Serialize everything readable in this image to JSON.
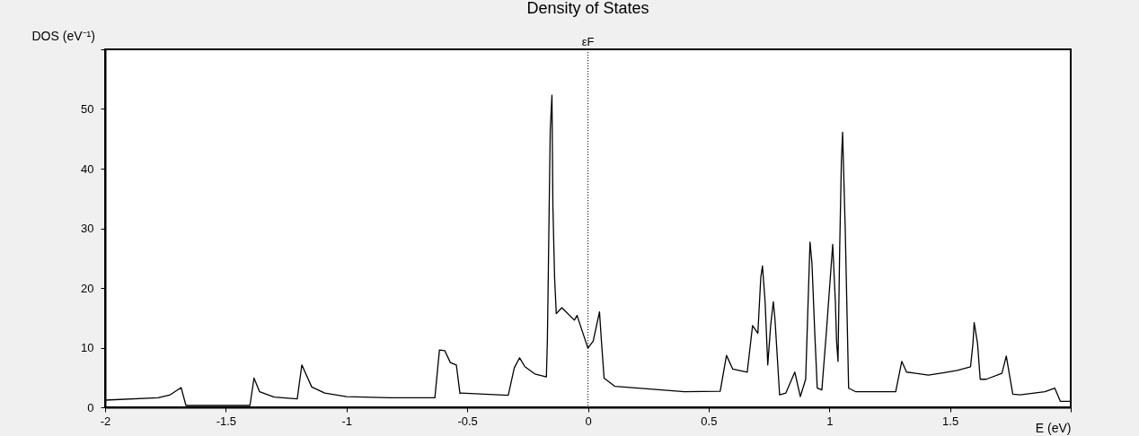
{
  "chart_data": {
    "type": "line",
    "title": "Density of States",
    "xlabel": "E (eV)",
    "ylabel": "DOS (eV⁻¹)",
    "series": [
      {
        "color": "#000000",
        "x": [
          -2,
          -1.78,
          -1.73,
          -1.685,
          -1.665,
          -1.4,
          -1.383,
          -1.36,
          -1.3,
          -1.204,
          -1.185,
          -1.144,
          -1.09,
          -1.0,
          -0.82,
          -0.634,
          -0.615,
          -0.593,
          -0.57,
          -0.545,
          -0.53,
          -0.525,
          -0.33,
          -0.305,
          -0.283,
          -0.261,
          -0.22,
          -0.172,
          -0.168,
          -0.164,
          -0.16,
          -0.156,
          -0.149,
          -0.145,
          -0.138,
          -0.131,
          -0.108,
          -0.056,
          -0.045,
          0,
          0.022,
          0.048,
          0.056,
          0.067,
          0.112,
          0.4,
          0.548,
          0.574,
          0.6,
          0.66,
          0.682,
          0.704,
          0.716,
          0.723,
          0.734,
          0.745,
          0.757,
          0.768,
          0.775,
          0.794,
          0.82,
          0.857,
          0.88,
          0.902,
          0.92,
          0.928,
          0.94,
          0.95,
          0.969,
          0.988,
          1.014,
          1.025,
          1.03,
          1.036,
          1.043,
          1.05,
          1.055,
          1.066,
          1.08,
          1.11,
          1.275,
          1.3,
          1.32,
          1.41,
          1.476,
          1.53,
          1.585,
          1.595,
          1.6,
          1.614,
          1.625,
          1.65,
          1.715,
          1.733,
          1.76,
          1.79,
          1.893,
          1.934,
          1.957,
          2.0
        ],
        "values": [
          1.2,
          1.6,
          2.1,
          3.3,
          0.3,
          0.3,
          4.9,
          2.6,
          1.7,
          1.4,
          7.1,
          3.4,
          2.4,
          1.8,
          1.6,
          1.6,
          9.6,
          9.5,
          7.5,
          7.1,
          2.3,
          2.4,
          2.0,
          6.6,
          8.3,
          6.8,
          5.6,
          5.1,
          11.1,
          22.7,
          34.8,
          46.5,
          52.3,
          33.7,
          21.7,
          15.7,
          16.7,
          14.6,
          15.4,
          9.9,
          11.1,
          16.0,
          11.1,
          4.9,
          3.5,
          2.6,
          2.7,
          8.7,
          6.4,
          5.9,
          13.7,
          12.4,
          21.7,
          23.7,
          17.7,
          7.1,
          13.7,
          17.7,
          14.7,
          2.1,
          2.4,
          5.9,
          1.8,
          4.7,
          27.7,
          24.2,
          12.2,
          3.2,
          2.9,
          12.7,
          27.3,
          17.7,
          11.1,
          7.7,
          26.7,
          41.3,
          46.1,
          29.7,
          3.2,
          2.6,
          2.6,
          7.7,
          5.9,
          5.4,
          5.8,
          6.2,
          6.8,
          10.7,
          14.2,
          10.7,
          4.7,
          4.7,
          5.7,
          8.6,
          2.2,
          2.1,
          2.6,
          3.2,
          1.0,
          1.0
        ]
      }
    ],
    "xlim": [
      -2,
      2
    ],
    "ylim": [
      0,
      60
    ],
    "xticks": [
      -2,
      -1.5,
      -1,
      -0.5,
      0,
      0.5,
      1,
      1.5,
      {
        "value": 2,
        "label": null
      }
    ],
    "yticks": [
      0,
      10,
      20,
      30,
      40,
      50,
      {
        "value": 60,
        "label": null
      }
    ],
    "ref_lines": [
      {
        "axis": "x",
        "value": 0,
        "label": "εF",
        "line_style": "dotted",
        "color": "#000000"
      }
    ],
    "grid": false,
    "marker": "none",
    "line_style": "solid"
  }
}
